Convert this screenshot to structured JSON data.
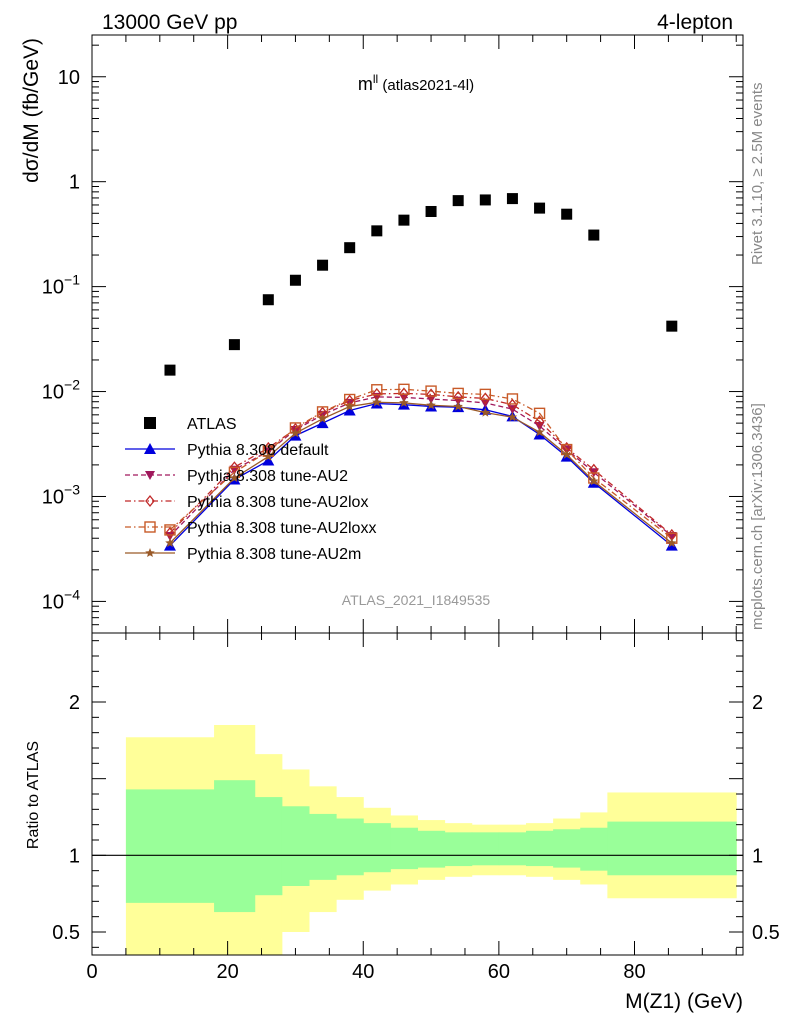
{
  "header": {
    "left": "13000 GeV pp",
    "right": "4-lepton",
    "side_rivet": "Rivet 3.1.10, ≥ 2.5M events",
    "side_mcplots": "mcplots.cern.ch [arXiv:1306.3436]",
    "watermark": "ATLAS_2021_I1849535"
  },
  "chart_data": [
    {
      "type": "scatter",
      "title_main": "m",
      "title_sup": "ll",
      "title_paren": "(atlas2021-4l)",
      "ylabel": "dσ/dM (fb/GeV)",
      "yscale": "log",
      "ylim": [
        5e-05,
        25
      ],
      "xlim": [
        0,
        96
      ],
      "y_ticks": [
        {
          "value": 10,
          "base": "10",
          "exp": ""
        },
        {
          "value": 1,
          "base": "1",
          "exp": ""
        },
        {
          "value": 0.1,
          "base": "10",
          "exp": "−1"
        },
        {
          "value": 0.01,
          "base": "10",
          "exp": "−2"
        },
        {
          "value": 0.001,
          "base": "10",
          "exp": "−3"
        },
        {
          "value": 0.0001,
          "base": "10",
          "exp": "−4"
        }
      ],
      "legend_position": "bottom-left",
      "series": [
        {
          "name": "ATLAS",
          "color": "#000000",
          "marker": "square",
          "line": "none",
          "x": [
            11.5,
            21,
            26,
            30,
            34,
            38,
            42,
            46,
            50,
            54,
            58,
            62,
            66,
            70,
            74,
            85.5
          ],
          "y": [
            0.016,
            0.028,
            0.075,
            0.115,
            0.16,
            0.235,
            0.34,
            0.43,
            0.52,
            0.66,
            0.67,
            0.69,
            0.56,
            0.49,
            0.31,
            0.042
          ]
        },
        {
          "name": "Pythia 8.308 default",
          "color": "#0000dd",
          "marker": "triangle-up",
          "line": "solid",
          "x": [
            11.5,
            21,
            26,
            30,
            34,
            38,
            42,
            46,
            50,
            54,
            58,
            62,
            66,
            70,
            74,
            85.5
          ],
          "y": [
            0.00034,
            0.00145,
            0.0022,
            0.0038,
            0.005,
            0.0066,
            0.0077,
            0.0075,
            0.0072,
            0.0071,
            0.0067,
            0.0058,
            0.0039,
            0.0024,
            0.00135,
            0.00034
          ]
        },
        {
          "name": "Pythia 8.308 tune-AU2",
          "color": "#a0185c",
          "marker": "triangle-down",
          "line": "dashed",
          "x": [
            11.5,
            21,
            26,
            30,
            34,
            38,
            42,
            46,
            50,
            54,
            58,
            62,
            66,
            70,
            74,
            85.5
          ],
          "y": [
            0.00042,
            0.0018,
            0.0027,
            0.0043,
            0.006,
            0.0078,
            0.0089,
            0.0088,
            0.0085,
            0.0082,
            0.0078,
            0.0068,
            0.0047,
            0.0028,
            0.0017,
            0.00042
          ]
        },
        {
          "name": "Pythia 8.308 tune-AU2lox",
          "color": "#c02828",
          "marker": "diamond-open",
          "line": "dashdot",
          "x": [
            11.5,
            21,
            26,
            30,
            34,
            38,
            42,
            46,
            50,
            54,
            58,
            62,
            66,
            70,
            74,
            85.5
          ],
          "y": [
            0.00045,
            0.0019,
            0.0029,
            0.0044,
            0.0063,
            0.0082,
            0.0095,
            0.0096,
            0.0094,
            0.0089,
            0.0086,
            0.0075,
            0.0052,
            0.0029,
            0.0018,
            0.00043
          ]
        },
        {
          "name": "Pythia 8.308 tune-AU2loxx",
          "color": "#c85a28",
          "marker": "square-open",
          "line": "dashdot",
          "x": [
            11.5,
            21,
            26,
            30,
            34,
            38,
            42,
            46,
            50,
            54,
            58,
            62,
            66,
            70,
            74,
            85.5
          ],
          "y": [
            0.00048,
            0.0017,
            0.0027,
            0.0045,
            0.0064,
            0.0084,
            0.0104,
            0.0105,
            0.0101,
            0.0096,
            0.0094,
            0.0085,
            0.0062,
            0.0028,
            0.0015,
            0.0004
          ]
        },
        {
          "name": "Pythia 8.308 tune-AU2m",
          "color": "#9a5a28",
          "marker": "star",
          "line": "solid",
          "x": [
            11.5,
            21,
            26,
            30,
            34,
            38,
            42,
            46,
            50,
            54,
            58,
            62,
            66,
            70,
            74,
            85.5
          ],
          "y": [
            0.00036,
            0.0015,
            0.0024,
            0.004,
            0.0055,
            0.0072,
            0.0079,
            0.0078,
            0.0074,
            0.0072,
            0.0063,
            0.0057,
            0.0041,
            0.0025,
            0.0014,
            0.00036
          ]
        }
      ]
    },
    {
      "type": "area",
      "ylabel": "Ratio to ATLAS",
      "xlabel": "M(Z1) (GeV)",
      "ylim": [
        0.35,
        2.45
      ],
      "xlim": [
        0,
        96
      ],
      "x_ticks": [
        0,
        20,
        40,
        60,
        80
      ],
      "y_ticks": [
        0.5,
        1,
        2
      ],
      "reference_line": 1,
      "bin_edges": [
        5,
        18,
        24,
        28,
        32,
        36,
        40,
        44,
        48,
        52,
        56,
        60,
        64,
        68,
        72,
        76,
        95
      ],
      "band_inner": {
        "color": "#99ff99",
        "lo": [
          0.69,
          0.63,
          0.74,
          0.8,
          0.84,
          0.87,
          0.89,
          0.91,
          0.92,
          0.93,
          0.935,
          0.935,
          0.93,
          0.92,
          0.9,
          0.87
        ],
        "hi": [
          1.43,
          1.49,
          1.38,
          1.32,
          1.27,
          1.24,
          1.21,
          1.18,
          1.16,
          1.15,
          1.15,
          1.15,
          1.16,
          1.17,
          1.18,
          1.22
        ]
      },
      "band_outer": {
        "color": "#ffff99",
        "lo": [
          0.3,
          0.3,
          0.3,
          0.5,
          0.63,
          0.71,
          0.77,
          0.81,
          0.84,
          0.86,
          0.87,
          0.87,
          0.86,
          0.84,
          0.81,
          0.72
        ],
        "hi": [
          1.77,
          1.85,
          1.66,
          1.56,
          1.45,
          1.38,
          1.31,
          1.26,
          1.23,
          1.21,
          1.2,
          1.2,
          1.21,
          1.24,
          1.28,
          1.41
        ]
      }
    }
  ]
}
